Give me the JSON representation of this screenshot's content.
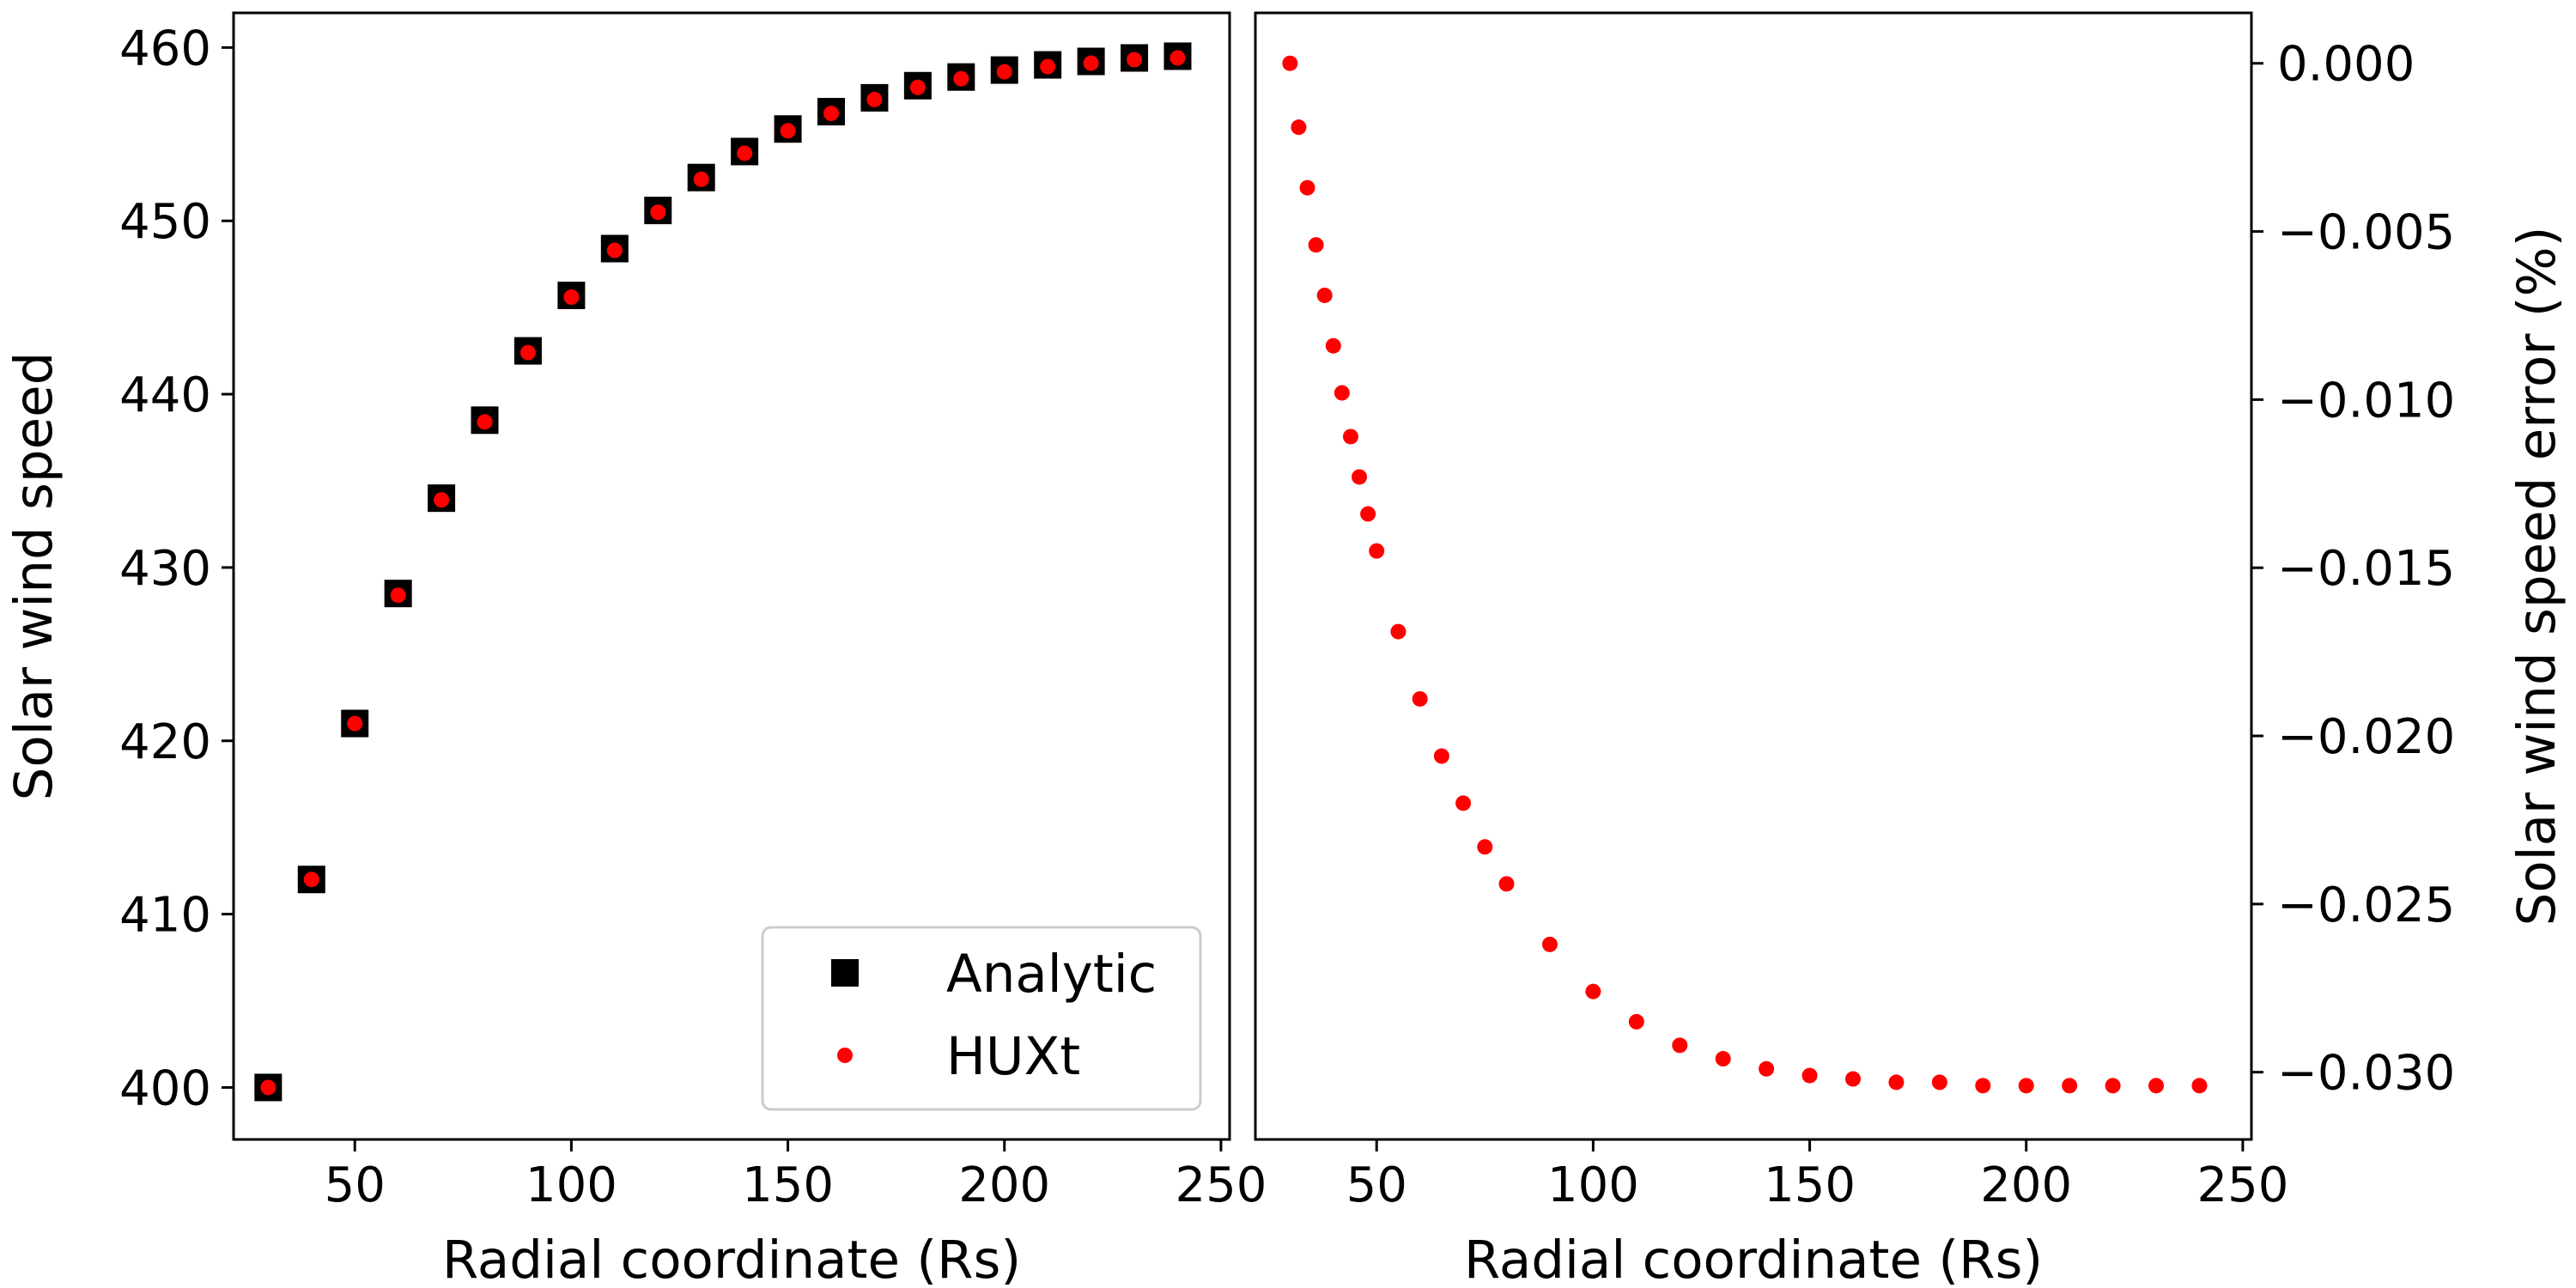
{
  "colors": {
    "analytic": "#000000",
    "huxt": "#ff0000",
    "axes": "#000000",
    "background": "#ffffff"
  },
  "chart_data": [
    {
      "type": "scatter",
      "panel": "left",
      "title": "",
      "xlabel": "Radial coordinate (Rs)",
      "ylabel": "Solar wind speed",
      "xlim": [
        22,
        252
      ],
      "ylim": [
        397,
        462
      ],
      "xticks": [
        50,
        100,
        150,
        200,
        250
      ],
      "yticks": [
        400,
        410,
        420,
        430,
        440,
        450,
        460
      ],
      "grid": false,
      "legend_position": "lower-right",
      "series": [
        {
          "name": "Analytic",
          "marker": "square",
          "color": "#000000",
          "x": [
            30,
            40,
            50,
            60,
            70,
            80,
            90,
            100,
            110,
            120,
            130,
            140,
            150,
            160,
            170,
            180,
            190,
            200,
            210,
            220,
            230,
            240
          ],
          "y": [
            400.0,
            412.0,
            421.0,
            428.5,
            434.0,
            438.5,
            442.5,
            445.7,
            448.4,
            450.6,
            452.5,
            454.0,
            455.3,
            456.3,
            457.1,
            457.8,
            458.3,
            458.7,
            459.0,
            459.2,
            459.4,
            459.5
          ]
        },
        {
          "name": "HUXt",
          "marker": "circle",
          "color": "#ff0000",
          "x": [
            30,
            40,
            50,
            60,
            70,
            80,
            90,
            100,
            110,
            120,
            130,
            140,
            150,
            160,
            170,
            180,
            190,
            200,
            210,
            220,
            230,
            240
          ],
          "y": [
            400.0,
            412.0,
            421.0,
            428.4,
            433.9,
            438.4,
            442.4,
            445.6,
            448.3,
            450.5,
            452.4,
            453.9,
            455.2,
            456.2,
            457.0,
            457.7,
            458.2,
            458.6,
            458.9,
            459.1,
            459.3,
            459.4
          ]
        }
      ]
    },
    {
      "type": "scatter",
      "panel": "right",
      "title": "",
      "xlabel": "Radial coordinate (Rs)",
      "ylabel": "Solar wind speed error (%)",
      "xlim": [
        22,
        252
      ],
      "ylim": [
        -0.032,
        0.0015
      ],
      "xticks": [
        50,
        100,
        150,
        200,
        250
      ],
      "yticks": [
        0.0,
        -0.005,
        -0.01,
        -0.015,
        -0.02,
        -0.025,
        -0.03
      ],
      "ytick_labels": [
        "0.000",
        "−0.005",
        "−0.010",
        "−0.015",
        "−0.020",
        "−0.025",
        "−0.030"
      ],
      "yaxis_side": "right",
      "grid": false,
      "series": [
        {
          "name": "",
          "marker": "circle",
          "color": "#ff0000",
          "x": [
            30,
            32,
            34,
            36,
            38,
            40,
            42,
            44,
            46,
            48,
            50,
            55,
            60,
            65,
            70,
            75,
            80,
            90,
            100,
            110,
            120,
            130,
            140,
            150,
            160,
            170,
            180,
            190,
            200,
            210,
            220,
            230,
            240
          ],
          "y": [
            0.0,
            -0.0019,
            -0.0037,
            -0.0054,
            -0.0069,
            -0.0084,
            -0.0098,
            -0.0111,
            -0.0123,
            -0.0134,
            -0.0145,
            -0.0169,
            -0.0189,
            -0.0206,
            -0.022,
            -0.0233,
            -0.0244,
            -0.0262,
            -0.0276,
            -0.0285,
            -0.0292,
            -0.0296,
            -0.0299,
            -0.0301,
            -0.0302,
            -0.0303,
            -0.0303,
            -0.0304,
            -0.0304,
            -0.0304,
            -0.0304,
            -0.0304,
            -0.0304
          ]
        }
      ]
    }
  ]
}
